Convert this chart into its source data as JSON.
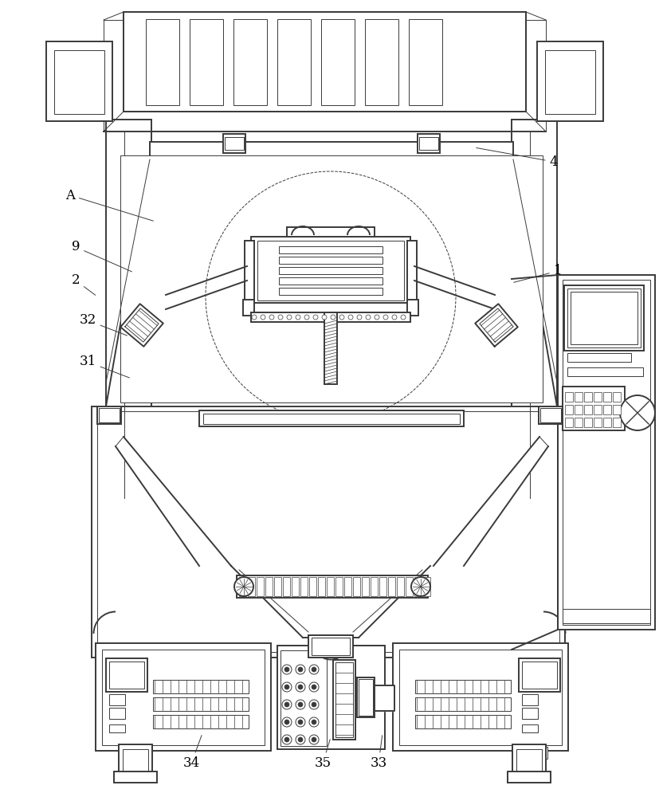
{
  "bg_color": "#ffffff",
  "lc": "#3a3a3a",
  "lw_main": 1.4,
  "lw_thin": 0.7,
  "lw_med": 1.0,
  "label_fs": 12
}
